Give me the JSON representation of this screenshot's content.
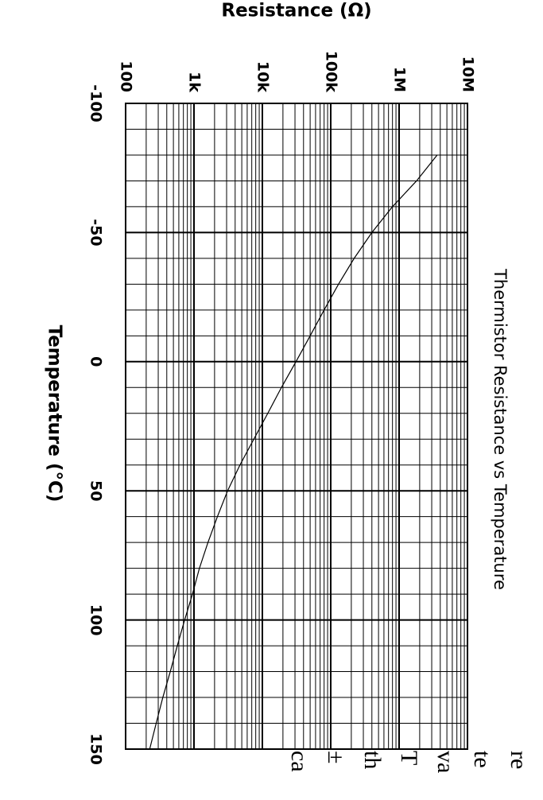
{
  "chart_data": {
    "type": "line",
    "title": "Thermistor Resistance vs Temperature",
    "x_label": "Temperature (°C)",
    "y_label": "Resistance (Ω)",
    "x": [
      -80,
      -70,
      -60,
      -50,
      -40,
      -30,
      -20,
      -10,
      0,
      10,
      20,
      30,
      40,
      50,
      60,
      70,
      80,
      90,
      100,
      110,
      120,
      130,
      140,
      150
    ],
    "series": [
      {
        "color": "#000000",
        "values": [
          3600000,
          1800000,
          800000,
          400000,
          220000,
          130000,
          80000,
          50000,
          31000,
          19000,
          12000,
          7500,
          4700,
          3100,
          2200,
          1600,
          1200,
          950,
          730,
          570,
          450,
          350,
          280,
          225
        ]
      }
    ],
    "xlim": [
      -100,
      150
    ],
    "xticks": [
      -100,
      -50,
      0,
      50,
      100,
      150
    ],
    "ylim": [
      100,
      10000000
    ],
    "yticks": [
      100,
      {
        "value": 1000,
        "label": "1k"
      },
      {
        "value": 10000,
        "label": "10k"
      },
      {
        "value": 100000,
        "label": "100k"
      },
      {
        "value": 1000000,
        "label": "1M"
      },
      {
        "value": 10000000,
        "label": "10M"
      }
    ],
    "y_log_scale": true,
    "grid": true
  },
  "margin_text": [
    "re",
    "te",
    "va",
    "T",
    "th",
    "±",
    "ca"
  ]
}
